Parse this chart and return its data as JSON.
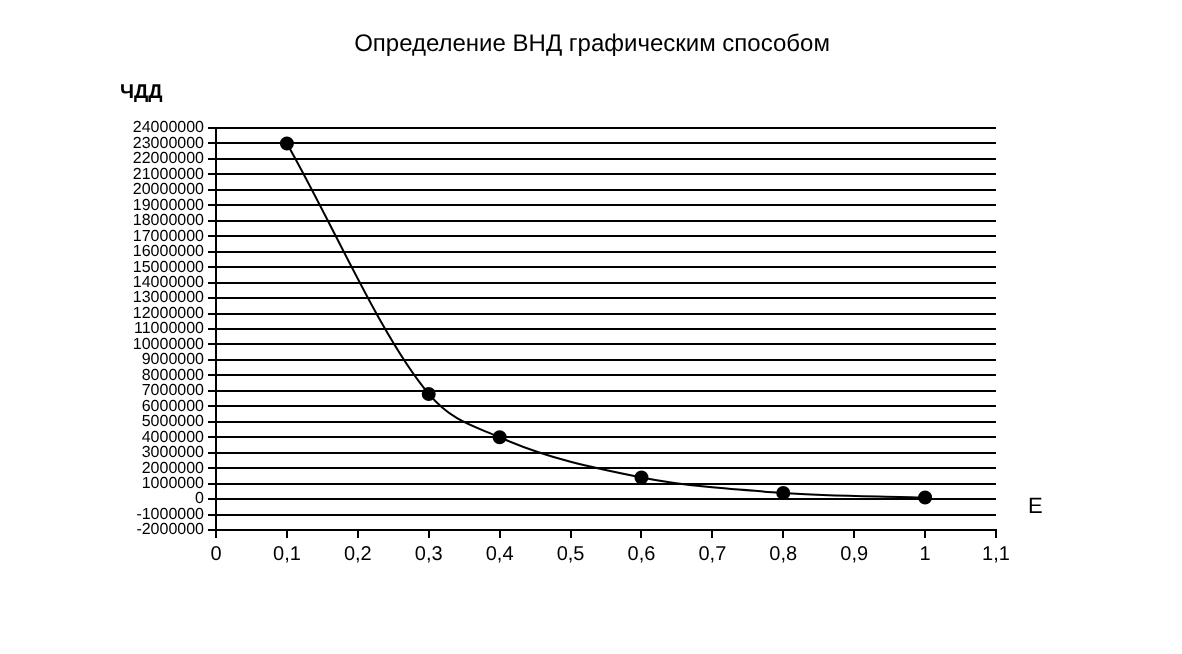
{
  "chart_data": {
    "type": "line",
    "title": "Определение ВНД графическим способом",
    "xlabel": "Е",
    "ylabel": "ЧДД",
    "x": [
      0.1,
      0.3,
      0.4,
      0.6,
      0.8,
      1
    ],
    "series": [
      {
        "color": "#000000",
        "values": [
          23000000,
          6800000,
          4000000,
          1400000,
          400000,
          100000
        ]
      }
    ],
    "xlim": [
      0,
      1.1
    ],
    "xticks": [
      0,
      {
        "value": 0.1,
        "label": "0,1"
      },
      {
        "value": 0.2,
        "label": "0,2"
      },
      {
        "value": 0.3,
        "label": "0,3"
      },
      {
        "value": 0.4,
        "label": "0,4"
      },
      {
        "value": 0.5,
        "label": "0,5"
      },
      {
        "value": 0.6,
        "label": "0,6"
      },
      {
        "value": 0.7,
        "label": "0,7"
      },
      {
        "value": 0.8,
        "label": "0,8"
      },
      {
        "value": 0.9,
        "label": "0,9"
      },
      1,
      {
        "value": 1.1,
        "label": "1,1"
      }
    ],
    "ylim": [
      -2000000,
      24000000
    ],
    "yticks": [
      -2000000,
      -1000000,
      0,
      1000000,
      2000000,
      3000000,
      4000000,
      5000000,
      6000000,
      7000000,
      8000000,
      9000000,
      10000000,
      11000000,
      12000000,
      13000000,
      14000000,
      15000000,
      16000000,
      17000000,
      18000000,
      19000000,
      20000000,
      21000000,
      22000000,
      23000000,
      24000000
    ],
    "grid": "y",
    "legend": false,
    "marker": "circle",
    "line_style": "solid"
  }
}
